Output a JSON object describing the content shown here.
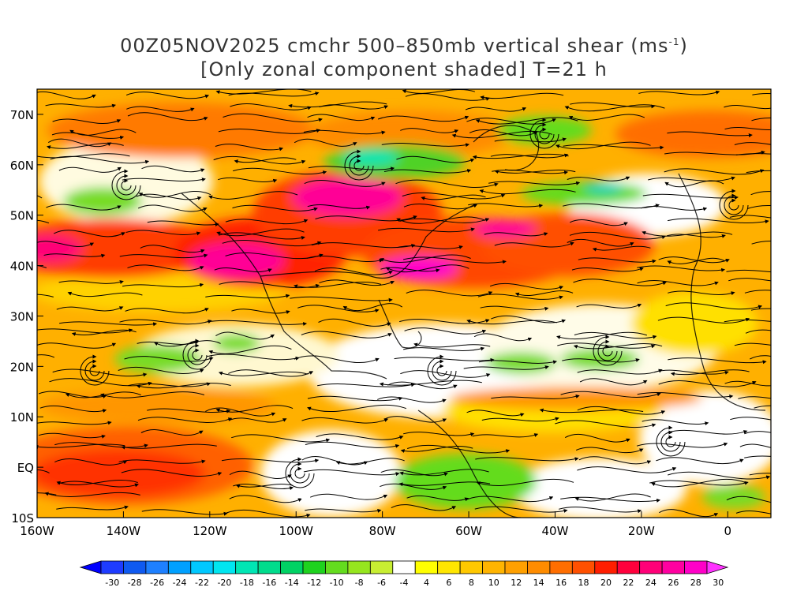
{
  "title": {
    "line1_text": "00Z05NOV2025 cmchr 500–850mb vertical shear (ms",
    "line1_unit_sup": "-1",
    "line1_close": ")",
    "line2": "[Only zonal component shaded] T=21 h"
  },
  "map": {
    "lat_range": [
      -10,
      75
    ],
    "lon_range": [
      -160,
      10
    ],
    "lat_ticks": [
      {
        "value": 70,
        "label": "70N"
      },
      {
        "value": 60,
        "label": "60N"
      },
      {
        "value": 50,
        "label": "50N"
      },
      {
        "value": 40,
        "label": "40N"
      },
      {
        "value": 30,
        "label": "30N"
      },
      {
        "value": 20,
        "label": "20N"
      },
      {
        "value": 10,
        "label": "10N"
      },
      {
        "value": 0,
        "label": "EQ"
      },
      {
        "value": -10,
        "label": "10S"
      }
    ],
    "lon_ticks": [
      {
        "value": -160,
        "label": "160W"
      },
      {
        "value": -140,
        "label": "140W"
      },
      {
        "value": -120,
        "label": "120W"
      },
      {
        "value": -100,
        "label": "100W"
      },
      {
        "value": -80,
        "label": "80W"
      },
      {
        "value": -60,
        "label": "60W"
      },
      {
        "value": -40,
        "label": "40W"
      },
      {
        "value": -20,
        "label": "20W"
      },
      {
        "value": 0,
        "label": "0"
      }
    ]
  },
  "colorbar": {
    "levels": [
      "-30",
      "-28",
      "-26",
      "-24",
      "-22",
      "-20",
      "-18",
      "-16",
      "-14",
      "-12",
      "-10",
      "-8",
      "-6",
      "-4",
      "4",
      "6",
      "8",
      "10",
      "12",
      "14",
      "16",
      "18",
      "20",
      "22",
      "24",
      "26",
      "28",
      "30"
    ],
    "colors": [
      "#0000ff",
      "#1e3cff",
      "#0f5af0",
      "#1e80ff",
      "#00a0ff",
      "#00c8ff",
      "#00e6f0",
      "#00e6b4",
      "#00dc8c",
      "#00d264",
      "#1ed21e",
      "#64dc1e",
      "#96e61e",
      "#c8ee32",
      "#ffffff",
      "#ffff00",
      "#ffe600",
      "#ffc800",
      "#ffb400",
      "#ffa000",
      "#ff8c00",
      "#ff6e00",
      "#ff5000",
      "#ff1e00",
      "#ff003c",
      "#ff0078",
      "#ff00a0",
      "#ff00c8",
      "#ff32ff"
    ]
  }
}
